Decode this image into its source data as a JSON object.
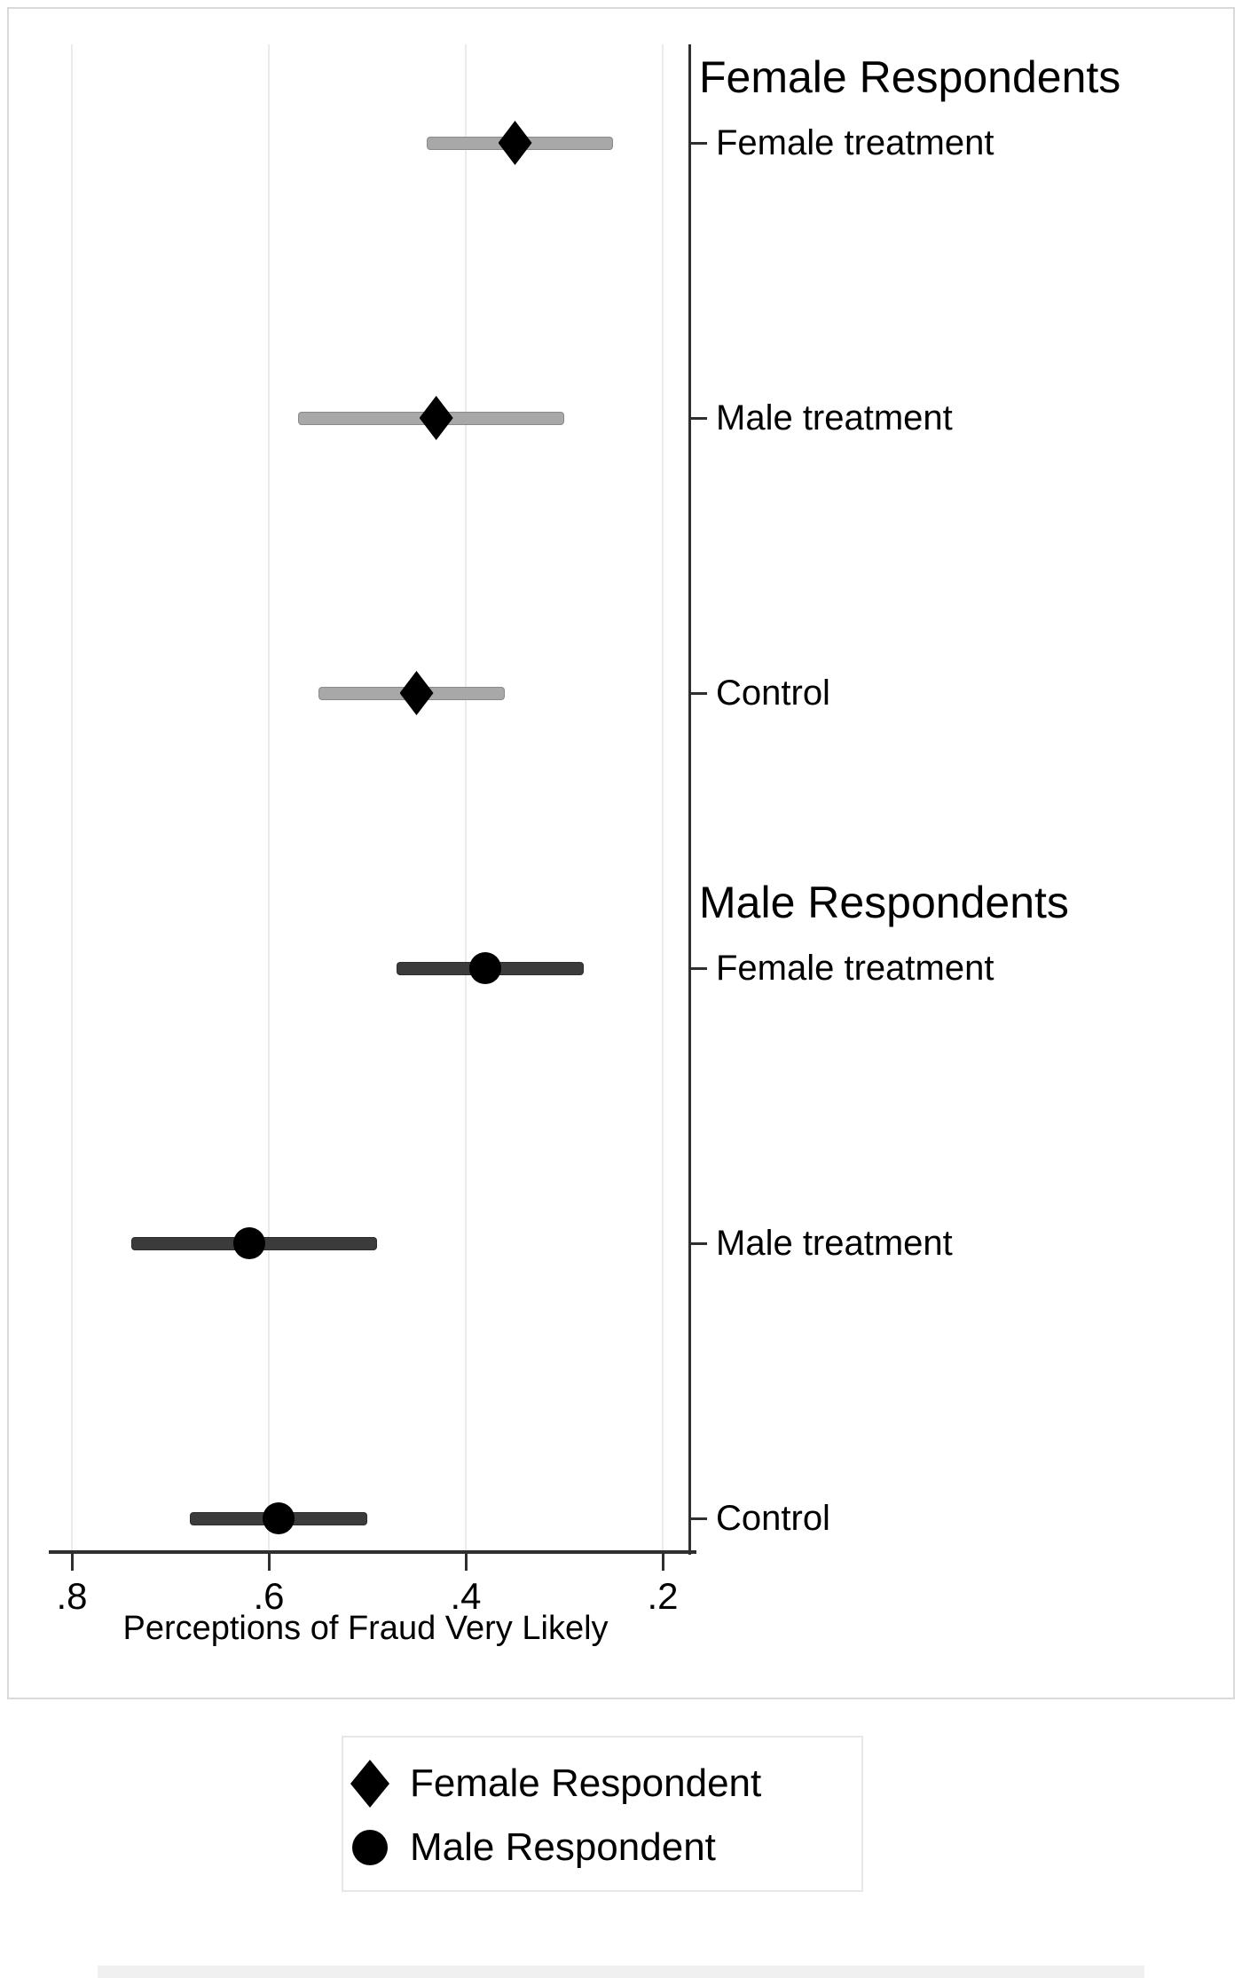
{
  "page": {
    "background": "#ffffff"
  },
  "chart_data": {
    "type": "scatter",
    "subtype": "horizontal-coefficient-plot-with-ci",
    "title": "",
    "xlabel": "Perceptions of Fraud Very Likely",
    "x_axis": {
      "ticks": [
        0.8,
        0.6,
        0.4,
        0.2
      ],
      "tick_labels": [
        ".8",
        ".6",
        ".4",
        ".2"
      ],
      "range": [
        0.82,
        0.17
      ],
      "reversed": true,
      "grid": true
    },
    "groups": [
      {
        "label": "Female Respondents",
        "marker": "diamond",
        "ci_color": "#a8a8a8",
        "points": [
          {
            "category": "Female treatment",
            "estimate": 0.35,
            "ci_low": 0.25,
            "ci_high": 0.44
          },
          {
            "category": "Male treatment",
            "estimate": 0.43,
            "ci_low": 0.3,
            "ci_high": 0.57
          },
          {
            "category": "Control",
            "estimate": 0.45,
            "ci_low": 0.36,
            "ci_high": 0.55
          }
        ]
      },
      {
        "label": "Male Respondents",
        "marker": "circle",
        "ci_color": "#3b3b3b",
        "points": [
          {
            "category": "Female treatment",
            "estimate": 0.38,
            "ci_low": 0.28,
            "ci_high": 0.47
          },
          {
            "category": "Male treatment",
            "estimate": 0.62,
            "ci_low": 0.49,
            "ci_high": 0.74
          },
          {
            "category": "Control",
            "estimate": 0.59,
            "ci_low": 0.5,
            "ci_high": 0.68
          }
        ]
      }
    ],
    "legend": {
      "position": "bottom-center-outside",
      "entries": [
        {
          "marker": "diamond",
          "label": "Female Respondent"
        },
        {
          "marker": "circle",
          "label": "Male Respondent"
        }
      ]
    }
  },
  "colors": {
    "marker": "#000000",
    "female_ci": "#a8a8a8",
    "male_ci": "#3b3b3b",
    "axis": "#2f2f2f",
    "gridline": "#ebebeb",
    "frame_border": "#d9d9d9",
    "legend_border": "#e7e7e7",
    "caption_strip": "#f0f0f0",
    "text": "#000000"
  }
}
